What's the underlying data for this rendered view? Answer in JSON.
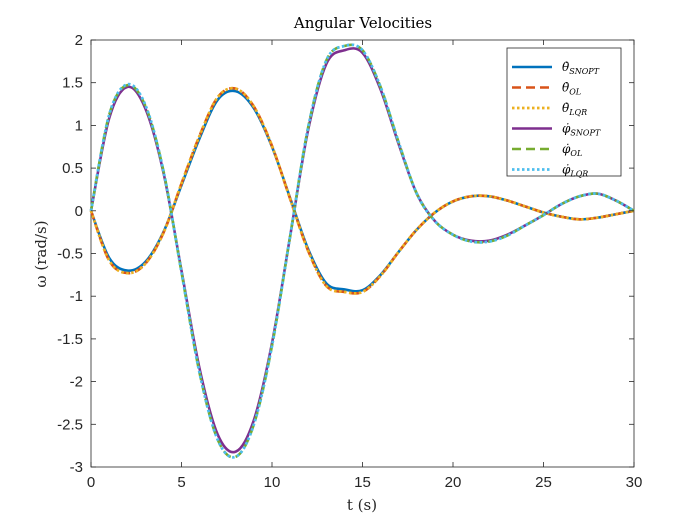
{
  "chart_data": {
    "type": "line",
    "title": "Angular Velocities",
    "xlabel": "t (s)",
    "ylabel": "ω (rad/s)",
    "xlim": [
      0,
      30
    ],
    "ylim": [
      -3,
      2
    ],
    "xticks": [
      "0",
      "5",
      "10",
      "15",
      "20",
      "25",
      "30"
    ],
    "yticks": [
      "-3",
      "-2.5",
      "-2",
      "-1.5",
      "-1",
      "-0.5",
      "0",
      "0.5",
      "1",
      "1.5",
      "2"
    ],
    "grid": false,
    "legend_position": "top-right",
    "x": [
      0,
      1,
      2,
      3,
      4,
      5,
      6,
      7,
      8,
      9,
      10,
      11,
      12,
      13,
      14,
      15,
      16,
      17,
      18,
      19,
      20,
      21,
      22,
      23,
      24,
      25,
      26,
      27,
      28,
      29,
      30
    ],
    "series": [
      {
        "name": "θ̇ SNOPT",
        "sub": "SNOPT",
        "base": "θ̇",
        "color": "#0072bd",
        "dash": "solid",
        "width": 2.6,
        "values": [
          0,
          -0.55,
          -0.7,
          -0.6,
          -0.25,
          0.3,
          0.85,
          1.3,
          1.4,
          1.2,
          0.75,
          0.15,
          -0.45,
          -0.85,
          -0.92,
          -0.93,
          -0.75,
          -0.48,
          -0.22,
          -0.02,
          0.11,
          0.17,
          0.17,
          0.12,
          0.05,
          -0.02,
          -0.07,
          -0.1,
          -0.08,
          -0.04,
          0
        ]
      },
      {
        "name": "θ̇ OL",
        "sub": "OL",
        "base": "θ̇",
        "color": "#d95319",
        "dash": "dashed",
        "width": 2.6,
        "values": [
          0,
          -0.58,
          -0.73,
          -0.62,
          -0.26,
          0.32,
          0.88,
          1.33,
          1.43,
          1.22,
          0.76,
          0.14,
          -0.47,
          -0.88,
          -0.95,
          -0.95,
          -0.76,
          -0.48,
          -0.22,
          -0.02,
          0.11,
          0.17,
          0.17,
          0.12,
          0.05,
          -0.02,
          -0.07,
          -0.1,
          -0.08,
          -0.04,
          0
        ]
      },
      {
        "name": "θ̇ LQR",
        "sub": "LQR",
        "base": "θ̇",
        "color": "#edb120",
        "dash": "dotted",
        "width": 2.8,
        "values": [
          0,
          -0.58,
          -0.73,
          -0.62,
          -0.26,
          0.32,
          0.88,
          1.33,
          1.43,
          1.22,
          0.76,
          0.14,
          -0.47,
          -0.88,
          -0.95,
          -0.95,
          -0.76,
          -0.48,
          -0.22,
          -0.02,
          0.11,
          0.17,
          0.17,
          0.12,
          0.05,
          -0.02,
          -0.07,
          -0.1,
          -0.08,
          -0.04,
          0
        ]
      },
      {
        "name": "φ̇ SNOPT",
        "sub": "SNOPT",
        "base": "φ̇",
        "color": "#7e2f8e",
        "dash": "solid",
        "width": 2.6,
        "values": [
          0,
          1.08,
          1.45,
          1.2,
          0.45,
          -0.7,
          -1.85,
          -2.62,
          -2.82,
          -2.45,
          -1.55,
          -0.3,
          0.95,
          1.72,
          1.88,
          1.85,
          1.42,
          0.78,
          0.2,
          -0.12,
          -0.28,
          -0.35,
          -0.35,
          -0.28,
          -0.17,
          -0.05,
          0.08,
          0.17,
          0.2,
          0.12,
          0
        ]
      },
      {
        "name": "φ̇ OL",
        "sub": "OL",
        "base": "φ̇",
        "color": "#77ac30",
        "dash": "dashed",
        "width": 2.6,
        "values": [
          0,
          1.12,
          1.47,
          1.23,
          0.47,
          -0.72,
          -1.9,
          -2.68,
          -2.88,
          -2.5,
          -1.58,
          -0.3,
          0.98,
          1.76,
          1.93,
          1.88,
          1.45,
          0.8,
          0.2,
          -0.12,
          -0.28,
          -0.36,
          -0.36,
          -0.29,
          -0.17,
          -0.05,
          0.08,
          0.17,
          0.2,
          0.12,
          0
        ]
      },
      {
        "name": "φ̇ LQR",
        "sub": "LQR",
        "base": "φ̇",
        "color": "#4dbeee",
        "dash": "dotted",
        "width": 2.8,
        "values": [
          0,
          1.12,
          1.48,
          1.24,
          0.47,
          -0.72,
          -1.9,
          -2.68,
          -2.88,
          -2.5,
          -1.58,
          -0.3,
          0.98,
          1.76,
          1.93,
          1.88,
          1.45,
          0.8,
          0.2,
          -0.12,
          -0.28,
          -0.36,
          -0.36,
          -0.29,
          -0.17,
          -0.05,
          0.08,
          0.17,
          0.2,
          0.12,
          0
        ]
      }
    ]
  }
}
